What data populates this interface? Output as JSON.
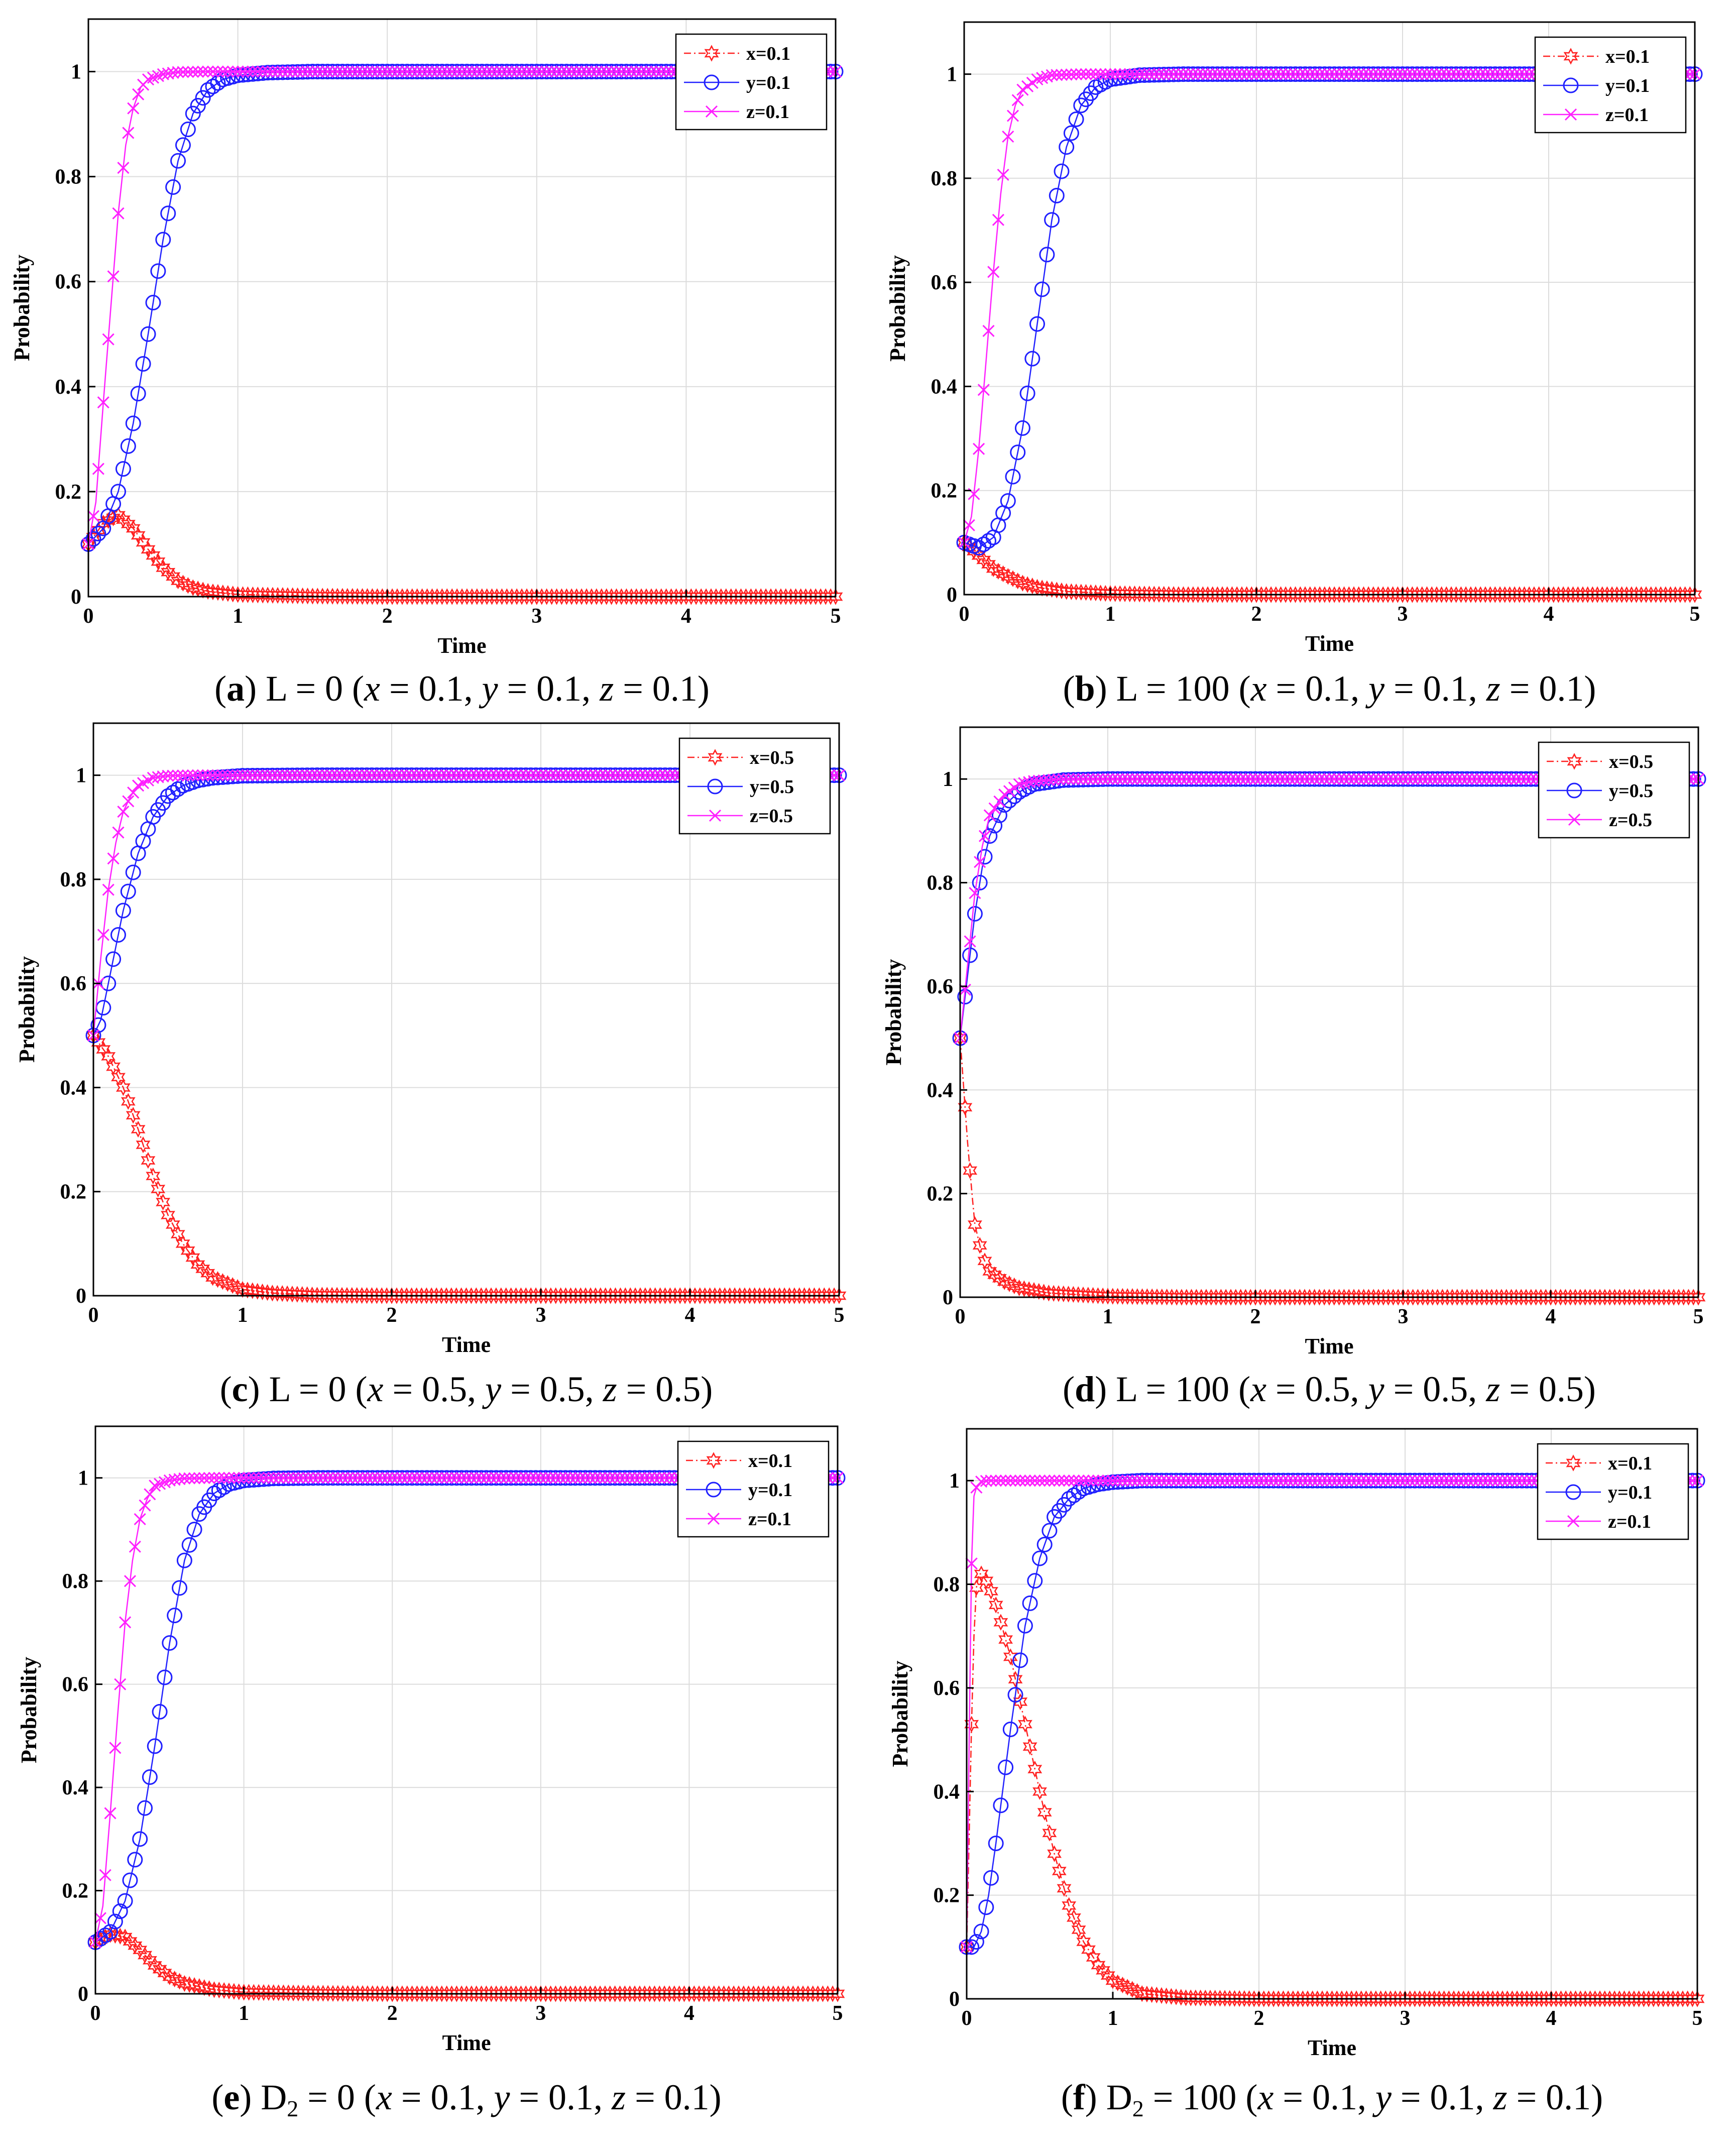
{
  "colors": {
    "x": "#ff2020",
    "y": "#2020ff",
    "z": "#ff20ff",
    "grid": "#dcdcdc",
    "axis": "#000000"
  },
  "chart_data": [
    {
      "type": "line",
      "panel": "a",
      "caption": {
        "label": "a",
        "prefix": "L = 0 (",
        "x": "x",
        "xv": " = 0.1, ",
        "y": "y",
        "yv": " = 0.1, ",
        "z": "z",
        "zv": " = 0.1)"
      },
      "xlabel": "Time",
      "ylabel": "Probability",
      "xlim": [
        0,
        5
      ],
      "ylim": [
        0,
        1.1
      ],
      "xticks": [
        "0",
        "1",
        "2",
        "3",
        "4",
        "5"
      ],
      "yticks": [
        "0",
        "0.2",
        "0.4",
        "0.6",
        "0.8",
        "1"
      ],
      "grid": true,
      "legend_position": "top-right",
      "series": [
        {
          "name": "x=0.1",
          "key": "x",
          "marker": "hexagram",
          "line": "dashdot",
          "x": [
            0,
            0.1,
            0.2,
            0.3,
            0.4,
            0.5,
            0.6,
            0.7,
            0.8,
            1.0,
            1.5,
            2.0,
            5.0
          ],
          "values": [
            0.1,
            0.14,
            0.155,
            0.13,
            0.09,
            0.055,
            0.03,
            0.017,
            0.01,
            0.004,
            0.001,
            0.0,
            0.0
          ]
        },
        {
          "name": "y=0.1",
          "key": "y",
          "marker": "circle",
          "line": "solid",
          "x": [
            0,
            0.1,
            0.2,
            0.3,
            0.4,
            0.5,
            0.6,
            0.7,
            0.8,
            0.9,
            1.0,
            1.2,
            1.5,
            2.0,
            5.0
          ],
          "values": [
            0.1,
            0.13,
            0.2,
            0.33,
            0.5,
            0.68,
            0.83,
            0.92,
            0.965,
            0.985,
            0.993,
            0.998,
            1.0,
            1.0,
            1.0
          ]
        },
        {
          "name": "z=0.1",
          "key": "z",
          "marker": "x",
          "line": "solid",
          "x": [
            0,
            0.05,
            0.1,
            0.15,
            0.2,
            0.25,
            0.3,
            0.35,
            0.4,
            0.5,
            0.6,
            0.8,
            1.0,
            5.0
          ],
          "values": [
            0.1,
            0.18,
            0.37,
            0.55,
            0.73,
            0.86,
            0.93,
            0.97,
            0.985,
            0.995,
            0.999,
            1.0,
            1.0,
            1.0
          ]
        }
      ]
    },
    {
      "type": "line",
      "panel": "b",
      "caption": {
        "label": "b",
        "prefix": "L = 100 (",
        "x": "x",
        "xv": " = 0.1, ",
        "y": "y",
        "yv": " = 0.1, ",
        "z": "z",
        "zv": " = 0.1)"
      },
      "xlabel": "Time",
      "ylabel": "Probability",
      "xlim": [
        0,
        5
      ],
      "ylim": [
        0,
        1.1
      ],
      "xticks": [
        "0",
        "1",
        "2",
        "3",
        "4",
        "5"
      ],
      "yticks": [
        "0",
        "0.2",
        "0.4",
        "0.6",
        "0.8",
        "1"
      ],
      "grid": true,
      "legend_position": "top-right",
      "series": [
        {
          "name": "x=0.1",
          "key": "x",
          "marker": "hexagram",
          "line": "dashdot",
          "x": [
            0,
            0.1,
            0.2,
            0.3,
            0.4,
            0.5,
            0.7,
            1.0,
            1.5,
            2.0,
            5.0
          ],
          "values": [
            0.1,
            0.075,
            0.05,
            0.035,
            0.022,
            0.014,
            0.006,
            0.002,
            0.0,
            0.0,
            0.0
          ]
        },
        {
          "name": "y=0.1",
          "key": "y",
          "marker": "circle",
          "line": "solid",
          "x": [
            0,
            0.1,
            0.2,
            0.3,
            0.4,
            0.5,
            0.6,
            0.7,
            0.8,
            0.9,
            1.0,
            1.2,
            1.5,
            2.0,
            5.0
          ],
          "values": [
            0.1,
            0.09,
            0.11,
            0.18,
            0.32,
            0.52,
            0.72,
            0.86,
            0.94,
            0.975,
            0.99,
            0.998,
            1.0,
            1.0,
            1.0
          ]
        },
        {
          "name": "z=0.1",
          "key": "z",
          "marker": "x",
          "line": "solid",
          "x": [
            0,
            0.05,
            0.1,
            0.15,
            0.2,
            0.25,
            0.3,
            0.35,
            0.4,
            0.5,
            0.6,
            0.8,
            1.0,
            5.0
          ],
          "values": [
            0.1,
            0.15,
            0.28,
            0.45,
            0.62,
            0.77,
            0.88,
            0.94,
            0.97,
            0.99,
            0.998,
            1.0,
            1.0,
            1.0
          ]
        }
      ]
    },
    {
      "type": "line",
      "panel": "c",
      "caption": {
        "label": "c",
        "prefix": "L = 0 (",
        "x": "x",
        "xv": " = 0.5, ",
        "y": "y",
        "yv": " = 0.5, ",
        "z": "z",
        "zv": " = 0.5)"
      },
      "xlabel": "Time",
      "ylabel": "Probability",
      "xlim": [
        0,
        5
      ],
      "ylim": [
        0,
        1.1
      ],
      "xticks": [
        "0",
        "1",
        "2",
        "3",
        "4",
        "5"
      ],
      "yticks": [
        "0",
        "0.2",
        "0.4",
        "0.6",
        "0.8",
        "1"
      ],
      "grid": true,
      "legend_position": "top-right",
      "series": [
        {
          "name": "x=0.5",
          "key": "x",
          "marker": "hexagram",
          "line": "dashdot",
          "x": [
            0,
            0.1,
            0.2,
            0.3,
            0.4,
            0.5,
            0.6,
            0.7,
            0.8,
            1.0,
            1.2,
            1.5,
            2.0,
            5.0
          ],
          "values": [
            0.5,
            0.46,
            0.4,
            0.32,
            0.23,
            0.155,
            0.1,
            0.06,
            0.035,
            0.012,
            0.005,
            0.001,
            0.0,
            0.0
          ]
        },
        {
          "name": "y=0.5",
          "key": "y",
          "marker": "circle",
          "line": "solid",
          "x": [
            0,
            0.05,
            0.1,
            0.2,
            0.3,
            0.4,
            0.5,
            0.6,
            0.7,
            0.8,
            1.0,
            1.5,
            2.0,
            5.0
          ],
          "values": [
            0.5,
            0.53,
            0.6,
            0.74,
            0.85,
            0.92,
            0.96,
            0.98,
            0.99,
            0.995,
            0.999,
            1.0,
            1.0,
            1.0
          ]
        },
        {
          "name": "z=0.5",
          "key": "z",
          "marker": "x",
          "line": "solid",
          "x": [
            0,
            0.05,
            0.1,
            0.15,
            0.2,
            0.25,
            0.3,
            0.4,
            0.5,
            0.7,
            1.0,
            5.0
          ],
          "values": [
            0.5,
            0.65,
            0.78,
            0.87,
            0.93,
            0.96,
            0.98,
            0.995,
            0.999,
            1.0,
            1.0,
            1.0
          ]
        }
      ]
    },
    {
      "type": "line",
      "panel": "d",
      "caption": {
        "label": "d",
        "prefix": "L = 100 (",
        "x": "x",
        "xv": " = 0.5, ",
        "y": "y",
        "yv": " = 0.5, ",
        "z": "z",
        "zv": " = 0.5)"
      },
      "xlabel": "Time",
      "ylabel": "Probability",
      "xlim": [
        0,
        5
      ],
      "ylim": [
        0,
        1.1
      ],
      "xticks": [
        "0",
        "1",
        "2",
        "3",
        "4",
        "5"
      ],
      "yticks": [
        "0",
        "0.2",
        "0.4",
        "0.6",
        "0.8",
        "1"
      ],
      "grid": true,
      "legend_position": "top-right",
      "series": [
        {
          "name": "x=0.5",
          "key": "x",
          "marker": "hexagram",
          "line": "dashdot",
          "x": [
            0,
            0.02,
            0.05,
            0.08,
            0.1,
            0.15,
            0.2,
            0.3,
            0.4,
            0.6,
            1.0,
            1.5,
            5.0
          ],
          "values": [
            0.5,
            0.42,
            0.3,
            0.2,
            0.14,
            0.08,
            0.05,
            0.03,
            0.018,
            0.008,
            0.002,
            0.0,
            0.0
          ]
        },
        {
          "name": "y=0.5",
          "key": "y",
          "marker": "circle",
          "line": "solid",
          "x": [
            0,
            0.05,
            0.1,
            0.15,
            0.2,
            0.3,
            0.4,
            0.5,
            0.7,
            1.0,
            1.5,
            5.0
          ],
          "values": [
            0.5,
            0.62,
            0.74,
            0.83,
            0.89,
            0.95,
            0.975,
            0.99,
            0.998,
            1.0,
            1.0,
            1.0
          ]
        },
        {
          "name": "z=0.5",
          "key": "z",
          "marker": "x",
          "line": "solid",
          "x": [
            0,
            0.05,
            0.1,
            0.15,
            0.2,
            0.3,
            0.4,
            0.5,
            0.7,
            1.0,
            5.0
          ],
          "values": [
            0.5,
            0.64,
            0.78,
            0.87,
            0.93,
            0.97,
            0.99,
            0.996,
            1.0,
            1.0,
            1.0
          ]
        }
      ]
    },
    {
      "type": "line",
      "panel": "e",
      "caption": {
        "label": "e",
        "prefix": "D",
        "sub": "2",
        "prefix2": " = 0 (",
        "x": "x",
        "xv": " = 0.1, ",
        "y": "y",
        "yv": " = 0.1, ",
        "z": "z",
        "zv": " = 0.1)"
      },
      "xlabel": "Time",
      "ylabel": "Probability",
      "xlim": [
        0,
        5
      ],
      "ylim": [
        0,
        1.1
      ],
      "xticks": [
        "0",
        "1",
        "2",
        "3",
        "4",
        "5"
      ],
      "yticks": [
        "0",
        "0.2",
        "0.4",
        "0.6",
        "0.8",
        "1"
      ],
      "grid": true,
      "legend_position": "top-right",
      "series": [
        {
          "name": "x=0.1",
          "key": "x",
          "marker": "hexagram",
          "line": "dashdot",
          "x": [
            0,
            0.1,
            0.2,
            0.3,
            0.4,
            0.5,
            0.6,
            0.8,
            1.0,
            1.5,
            2.0,
            5.0
          ],
          "values": [
            0.1,
            0.115,
            0.11,
            0.085,
            0.055,
            0.033,
            0.02,
            0.008,
            0.003,
            0.001,
            0.0,
            0.0
          ]
        },
        {
          "name": "y=0.1",
          "key": "y",
          "marker": "circle",
          "line": "solid",
          "x": [
            0,
            0.1,
            0.2,
            0.3,
            0.4,
            0.5,
            0.6,
            0.7,
            0.8,
            0.9,
            1.0,
            1.2,
            1.5,
            2.0,
            5.0
          ],
          "values": [
            0.1,
            0.12,
            0.18,
            0.3,
            0.48,
            0.68,
            0.84,
            0.93,
            0.97,
            0.988,
            0.995,
            0.999,
            1.0,
            1.0,
            1.0
          ]
        },
        {
          "name": "z=0.1",
          "key": "z",
          "marker": "x",
          "line": "solid",
          "x": [
            0,
            0.05,
            0.1,
            0.15,
            0.2,
            0.25,
            0.3,
            0.35,
            0.4,
            0.5,
            0.6,
            0.8,
            1.0,
            5.0
          ],
          "values": [
            0.1,
            0.17,
            0.35,
            0.54,
            0.72,
            0.84,
            0.92,
            0.96,
            0.985,
            0.995,
            0.999,
            1.0,
            1.0,
            1.0
          ]
        }
      ]
    },
    {
      "type": "line",
      "panel": "f",
      "caption": {
        "label": "f",
        "prefix": "D",
        "sub": "2",
        "prefix2": " = 100 (",
        "x": "x",
        "xv": " = 0.1, ",
        "y": "y",
        "yv": " = 0.1, ",
        "z": "z",
        "zv": " = 0.1)"
      },
      "xlabel": "Time",
      "ylabel": "Probability",
      "xlim": [
        0,
        5
      ],
      "ylim": [
        0,
        1.1
      ],
      "xticks": [
        "0",
        "1",
        "2",
        "3",
        "4",
        "5"
      ],
      "yticks": [
        "0",
        "0.2",
        "0.4",
        "0.6",
        "0.8",
        "1"
      ],
      "grid": true,
      "legend_position": "top-right",
      "series": [
        {
          "name": "x=0.1",
          "key": "x",
          "marker": "hexagram",
          "line": "dashdot",
          "x": [
            0,
            0.02,
            0.04,
            0.06,
            0.08,
            0.1,
            0.15,
            0.2,
            0.3,
            0.4,
            0.5,
            0.6,
            0.7,
            0.8,
            0.9,
            1.0,
            1.2,
            1.5,
            2.0,
            5.0
          ],
          "values": [
            0.1,
            0.35,
            0.62,
            0.78,
            0.82,
            0.82,
            0.8,
            0.76,
            0.66,
            0.53,
            0.4,
            0.28,
            0.18,
            0.11,
            0.065,
            0.035,
            0.01,
            0.002,
            0.0,
            0.0
          ]
        },
        {
          "name": "y=0.1",
          "key": "y",
          "marker": "circle",
          "line": "solid",
          "x": [
            0,
            0.05,
            0.1,
            0.15,
            0.2,
            0.3,
            0.4,
            0.5,
            0.6,
            0.7,
            0.8,
            0.9,
            1.0,
            1.2,
            1.5,
            2.0,
            5.0
          ],
          "values": [
            0.1,
            0.1,
            0.13,
            0.2,
            0.3,
            0.52,
            0.72,
            0.85,
            0.93,
            0.965,
            0.985,
            0.993,
            0.997,
            1.0,
            1.0,
            1.0,
            1.0
          ]
        },
        {
          "name": "z=0.1",
          "key": "z",
          "marker": "x",
          "line": "solid",
          "x": [
            0,
            0.01,
            0.02,
            0.03,
            0.04,
            0.05,
            0.07,
            0.1,
            0.15,
            0.2,
            5.0
          ],
          "values": [
            0.1,
            0.3,
            0.58,
            0.8,
            0.92,
            0.97,
            0.99,
            0.998,
            1.0,
            1.0,
            1.0
          ]
        }
      ]
    }
  ]
}
